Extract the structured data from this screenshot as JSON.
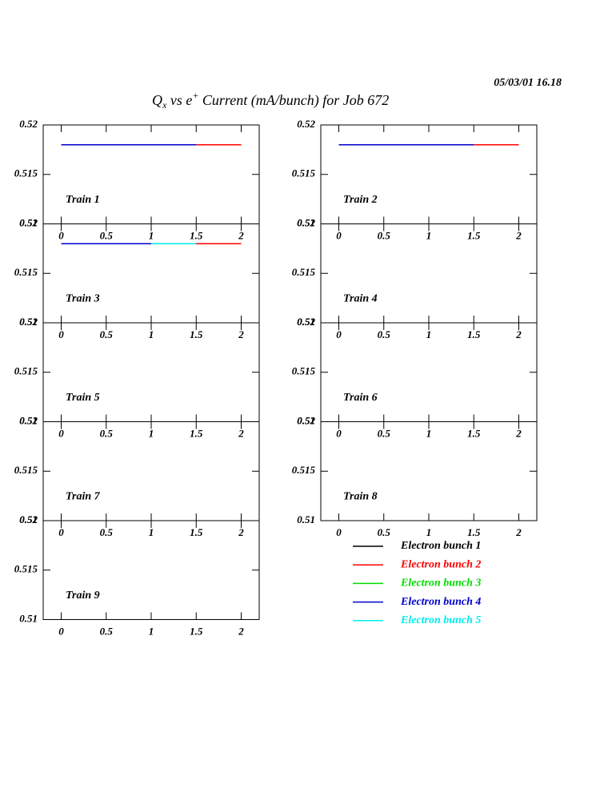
{
  "header": {
    "title": [
      "Q",
      "x",
      " vs e",
      "+",
      " Current (mA/bunch) for Job 672"
    ],
    "timestamp": "05/03/01   16.18"
  },
  "legend": [
    {
      "name": "Electron bunch 1",
      "color": "#000000"
    },
    {
      "name": "Electron bunch 2",
      "color": "#ff0000"
    },
    {
      "name": "Electron bunch 3",
      "color": "#00dd00"
    },
    {
      "name": "Electron bunch 4",
      "color": "#0000cc"
    },
    {
      "name": "Electron bunch 5",
      "color": "#00eeee"
    }
  ],
  "chart_data": [
    {
      "type": "line",
      "title": "Train 1",
      "x": [
        0,
        0.5,
        1,
        1.5,
        2
      ],
      "xlim": [
        -0.2,
        2.2
      ],
      "xticks": [
        0,
        0.5,
        1,
        1.5,
        2
      ],
      "ylim": [
        0.51,
        0.52
      ],
      "yticks": [
        0.51,
        0.515,
        0.52
      ],
      "series": [
        {
          "values": [
            0.518,
            0.518,
            0.518,
            0.518,
            0.518
          ]
        },
        {
          "values": [
            0.518,
            0.518,
            0.518,
            0.518,
            0.518
          ]
        },
        {
          "values": [
            null,
            null,
            null,
            null,
            null
          ]
        },
        {
          "values": [
            0.518,
            0.518,
            0.518,
            0.518,
            null
          ]
        },
        {
          "values": [
            null,
            null,
            null,
            null,
            null
          ]
        }
      ]
    },
    {
      "type": "line",
      "title": "Train 2",
      "x": [
        0,
        0.5,
        1,
        1.5,
        2
      ],
      "xlim": [
        -0.2,
        2.2
      ],
      "xticks": [
        0,
        0.5,
        1,
        1.5,
        2
      ],
      "ylim": [
        0.51,
        0.52
      ],
      "yticks": [
        0.51,
        0.515,
        0.52
      ],
      "series": [
        {
          "values": [
            0.518,
            0.518,
            0.518,
            0.518,
            0.518
          ]
        },
        {
          "values": [
            0.518,
            0.518,
            0.518,
            0.518,
            0.518
          ]
        },
        {
          "values": [
            null,
            null,
            null,
            null,
            null
          ]
        },
        {
          "values": [
            0.518,
            0.518,
            0.518,
            0.518,
            null
          ]
        },
        {
          "values": [
            null,
            null,
            null,
            null,
            null
          ]
        }
      ]
    },
    {
      "type": "line",
      "title": "Train 3",
      "x": [
        0,
        0.5,
        1,
        1.5,
        2
      ],
      "xlim": [
        -0.2,
        2.2
      ],
      "xticks": [
        0,
        0.5,
        1,
        1.5,
        2
      ],
      "ylim": [
        0.51,
        0.52
      ],
      "yticks": [
        0.51,
        0.515,
        0.52
      ],
      "series": [
        {
          "values": [
            null,
            null,
            null,
            null,
            null
          ]
        },
        {
          "values": [
            0.518,
            0.518,
            0.518,
            0.518,
            0.518
          ]
        },
        {
          "values": [
            null,
            null,
            null,
            0.518,
            null
          ]
        },
        {
          "values": [
            0.518,
            0.518,
            0.518,
            0.518,
            null
          ]
        },
        {
          "values": [
            null,
            null,
            0.518,
            0.518,
            null
          ]
        }
      ]
    },
    {
      "type": "line",
      "title": "Train 4",
      "x": [
        0,
        0.5,
        1,
        1.5,
        2
      ],
      "xlim": [
        -0.2,
        2.2
      ],
      "xticks": [
        0,
        0.5,
        1,
        1.5,
        2
      ],
      "ylim": [
        0.51,
        0.52
      ],
      "yticks": [
        0.51,
        0.515,
        0.52
      ],
      "series": []
    },
    {
      "type": "line",
      "title": "Train 5",
      "x": [
        0,
        0.5,
        1,
        1.5,
        2
      ],
      "xlim": [
        -0.2,
        2.2
      ],
      "xticks": [
        0,
        0.5,
        1,
        1.5,
        2
      ],
      "ylim": [
        0.51,
        0.52
      ],
      "yticks": [
        0.51,
        0.515,
        0.52
      ],
      "series": []
    },
    {
      "type": "line",
      "title": "Train 6",
      "x": [
        0,
        0.5,
        1,
        1.5,
        2
      ],
      "xlim": [
        -0.2,
        2.2
      ],
      "xticks": [
        0,
        0.5,
        1,
        1.5,
        2
      ],
      "ylim": [
        0.51,
        0.52
      ],
      "yticks": [
        0.51,
        0.515,
        0.52
      ],
      "series": []
    },
    {
      "type": "line",
      "title": "Train 7",
      "x": [
        0,
        0.5,
        1,
        1.5,
        2
      ],
      "xlim": [
        -0.2,
        2.2
      ],
      "xticks": [
        0,
        0.5,
        1,
        1.5,
        2
      ],
      "ylim": [
        0.51,
        0.52
      ],
      "yticks": [
        0.51,
        0.515,
        0.52
      ],
      "series": []
    },
    {
      "type": "line",
      "title": "Train 8",
      "x": [
        0,
        0.5,
        1,
        1.5,
        2
      ],
      "xlim": [
        -0.2,
        2.2
      ],
      "xticks": [
        0,
        0.5,
        1,
        1.5,
        2
      ],
      "ylim": [
        0.51,
        0.52
      ],
      "yticks": [
        0.51,
        0.515,
        0.52
      ],
      "series": []
    },
    {
      "type": "line",
      "title": "Train 9",
      "x": [
        0,
        0.5,
        1,
        1.5,
        2
      ],
      "xlim": [
        -0.2,
        2.2
      ],
      "xticks": [
        0,
        0.5,
        1,
        1.5,
        2
      ],
      "ylim": [
        0.51,
        0.52
      ],
      "yticks": [
        0.51,
        0.515,
        0.52
      ],
      "series": []
    }
  ]
}
